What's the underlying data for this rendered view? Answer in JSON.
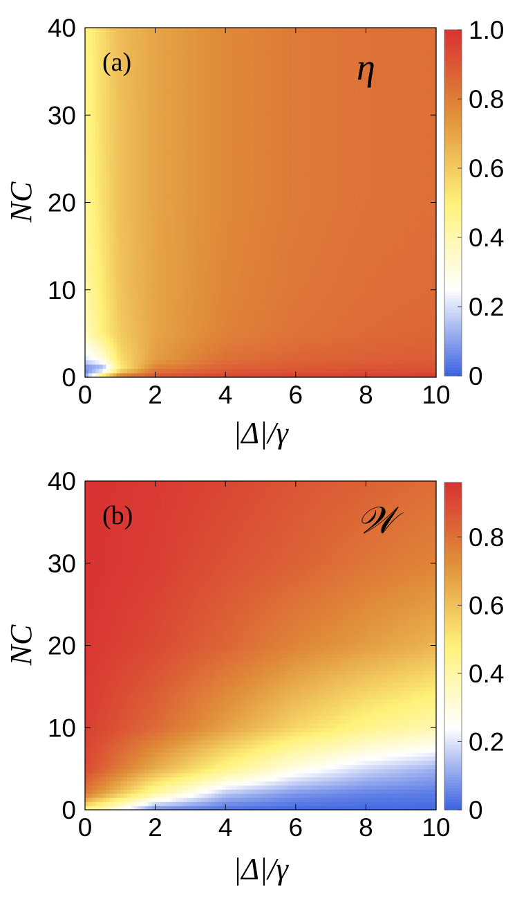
{
  "chart_data": [
    {
      "type": "heatmap",
      "panel_label": "(a)",
      "symbol": "η",
      "xlabel": "|Δ|/γ",
      "ylabel": "NC",
      "xlim": [
        0,
        10
      ],
      "ylim": [
        0,
        40
      ],
      "x_ticks": [
        "0",
        "2",
        "4",
        "6",
        "8",
        "10"
      ],
      "y_ticks": [
        "0",
        "10",
        "20",
        "30",
        "40"
      ],
      "colorbar_ticks": [
        "0",
        "0.2",
        "0.4",
        "0.6",
        "0.8",
        "1.0"
      ],
      "colorbar_range": [
        0,
        1
      ],
      "colormap": [
        "#3a61e0",
        "#ffffff",
        "#fff27a",
        "#e0913a",
        "#d83232"
      ],
      "grid": false,
      "x": [
        0,
        0.5,
        1,
        2,
        4,
        6,
        8,
        10
      ],
      "y": [
        0,
        1,
        2,
        5,
        10,
        20,
        30,
        40
      ],
      "z": [
        [
          0.1,
          0.6,
          0.85,
          0.92,
          0.95,
          0.96,
          0.97,
          0.97
        ],
        [
          0.05,
          0.1,
          0.5,
          0.8,
          0.88,
          0.9,
          0.91,
          0.92
        ],
        [
          0.2,
          0.3,
          0.55,
          0.72,
          0.84,
          0.87,
          0.88,
          0.89
        ],
        [
          0.36,
          0.5,
          0.6,
          0.7,
          0.79,
          0.83,
          0.85,
          0.86
        ],
        [
          0.42,
          0.52,
          0.62,
          0.7,
          0.78,
          0.82,
          0.84,
          0.85
        ],
        [
          0.45,
          0.55,
          0.63,
          0.7,
          0.77,
          0.81,
          0.83,
          0.84
        ],
        [
          0.46,
          0.56,
          0.63,
          0.7,
          0.77,
          0.81,
          0.83,
          0.84
        ],
        [
          0.47,
          0.56,
          0.64,
          0.7,
          0.77,
          0.81,
          0.83,
          0.84
        ]
      ]
    },
    {
      "type": "heatmap",
      "panel_label": "(b)",
      "symbol": "𝒲",
      "xlabel": "|Δ|/γ",
      "ylabel": "NC",
      "xlim": [
        0,
        10
      ],
      "ylim": [
        0,
        40
      ],
      "x_ticks": [
        "0",
        "2",
        "4",
        "6",
        "8",
        "10"
      ],
      "y_ticks": [
        "0",
        "10",
        "20",
        "30",
        "40"
      ],
      "colorbar_ticks": [
        "0",
        "0.2",
        "0.4",
        "0.6",
        "0.8"
      ],
      "colorbar_range": [
        0,
        0.96
      ],
      "colormap": [
        "#3a61e0",
        "#ffffff",
        "#fff27a",
        "#e0913a",
        "#d83232"
      ],
      "grid": false,
      "x": [
        0,
        2,
        4,
        6,
        8,
        10
      ],
      "y": [
        0,
        2,
        5,
        10,
        20,
        30,
        40
      ],
      "z": [
        [
          0.45,
          0.05,
          0.02,
          0.01,
          0.01,
          0.01
        ],
        [
          0.78,
          0.4,
          0.15,
          0.08,
          0.05,
          0.04
        ],
        [
          0.9,
          0.65,
          0.45,
          0.28,
          0.18,
          0.12
        ],
        [
          0.93,
          0.82,
          0.68,
          0.55,
          0.45,
          0.38
        ],
        [
          0.95,
          0.9,
          0.83,
          0.75,
          0.69,
          0.63
        ],
        [
          0.96,
          0.93,
          0.88,
          0.84,
          0.79,
          0.75
        ],
        [
          0.96,
          0.94,
          0.91,
          0.87,
          0.84,
          0.81
        ]
      ]
    }
  ]
}
